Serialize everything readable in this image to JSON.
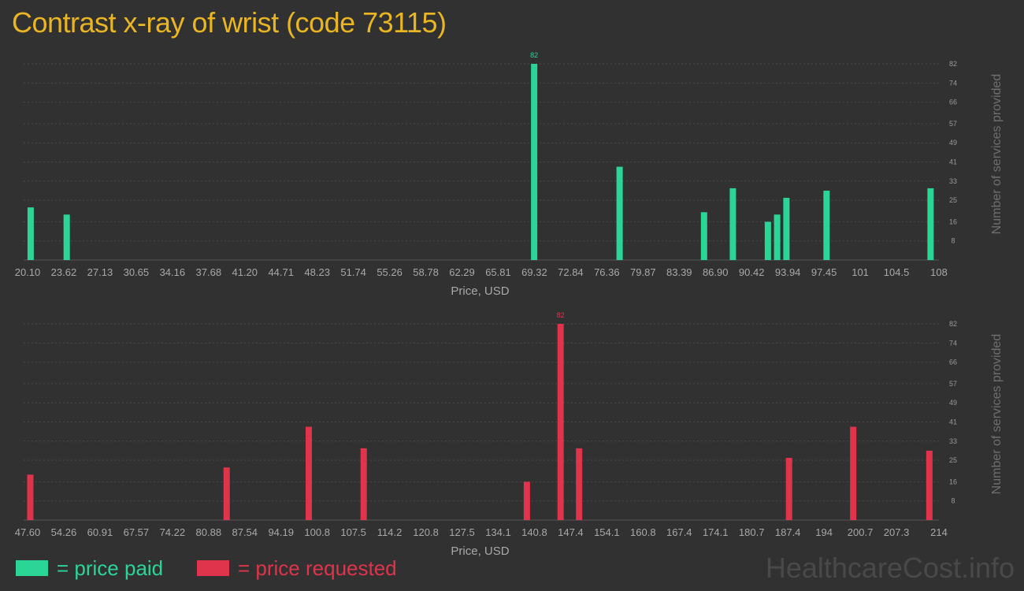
{
  "title": "Contrast x-ray of wrist (code 73115)",
  "watermark": "HealthcareCost.info",
  "legend": [
    {
      "label": "= price paid",
      "color": "#2ad597"
    },
    {
      "label": "= price requested",
      "color": "#e0334c"
    }
  ],
  "chart_data": [
    {
      "type": "bar",
      "color": "#2ad597",
      "xlabel": "Price, USD",
      "ylabel": "Number of services provided",
      "ylim": [
        0,
        82
      ],
      "yticks": [
        "8",
        "16",
        "25",
        "33",
        "41",
        "49",
        "57",
        "66",
        "74",
        "82"
      ],
      "grid": true,
      "xlim": [
        20.1,
        108
      ],
      "xticks": [
        "20.10",
        "23.62",
        "27.13",
        "30.65",
        "34.16",
        "37.68",
        "41.20",
        "44.71",
        "48.23",
        "51.74",
        "55.26",
        "58.78",
        "62.29",
        "65.81",
        "69.32",
        "72.84",
        "76.36",
        "79.87",
        "83.39",
        "86.90",
        "90.42",
        "93.94",
        "97.45",
        "101",
        "104.5",
        "108"
      ],
      "bars": [
        {
          "x": 20.4,
          "y": 22
        },
        {
          "x": 23.9,
          "y": 19
        },
        {
          "x": 69.3,
          "y": 82,
          "label": "82"
        },
        {
          "x": 77.6,
          "y": 39
        },
        {
          "x": 85.8,
          "y": 20
        },
        {
          "x": 88.6,
          "y": 30
        },
        {
          "x": 92.0,
          "y": 16
        },
        {
          "x": 92.9,
          "y": 19
        },
        {
          "x": 93.8,
          "y": 26
        },
        {
          "x": 97.7,
          "y": 29
        },
        {
          "x": 107.8,
          "y": 30
        }
      ]
    },
    {
      "type": "bar",
      "color": "#e0334c",
      "xlabel": "Price, USD",
      "ylabel": "Number of services provided",
      "ylim": [
        0,
        82
      ],
      "yticks": [
        "8",
        "16",
        "25",
        "33",
        "41",
        "49",
        "57",
        "66",
        "74",
        "82"
      ],
      "grid": true,
      "xlim": [
        47.6,
        214
      ],
      "xticks": [
        "47.60",
        "54.26",
        "60.91",
        "67.57",
        "74.22",
        "80.88",
        "87.54",
        "94.19",
        "100.8",
        "107.5",
        "114.2",
        "120.8",
        "127.5",
        "134.1",
        "140.8",
        "147.4",
        "154.1",
        "160.8",
        "167.4",
        "174.1",
        "180.7",
        "187.4",
        "194",
        "200.7",
        "207.3",
        "214"
      ],
      "bars": [
        {
          "x": 48.1,
          "y": 19
        },
        {
          "x": 84.2,
          "y": 22
        },
        {
          "x": 99.3,
          "y": 39
        },
        {
          "x": 109.4,
          "y": 30
        },
        {
          "x": 139.4,
          "y": 16
        },
        {
          "x": 145.6,
          "y": 82,
          "label": "82"
        },
        {
          "x": 149.0,
          "y": 30
        },
        {
          "x": 187.6,
          "y": 26
        },
        {
          "x": 199.4,
          "y": 39
        },
        {
          "x": 213.4,
          "y": 29
        }
      ]
    }
  ]
}
